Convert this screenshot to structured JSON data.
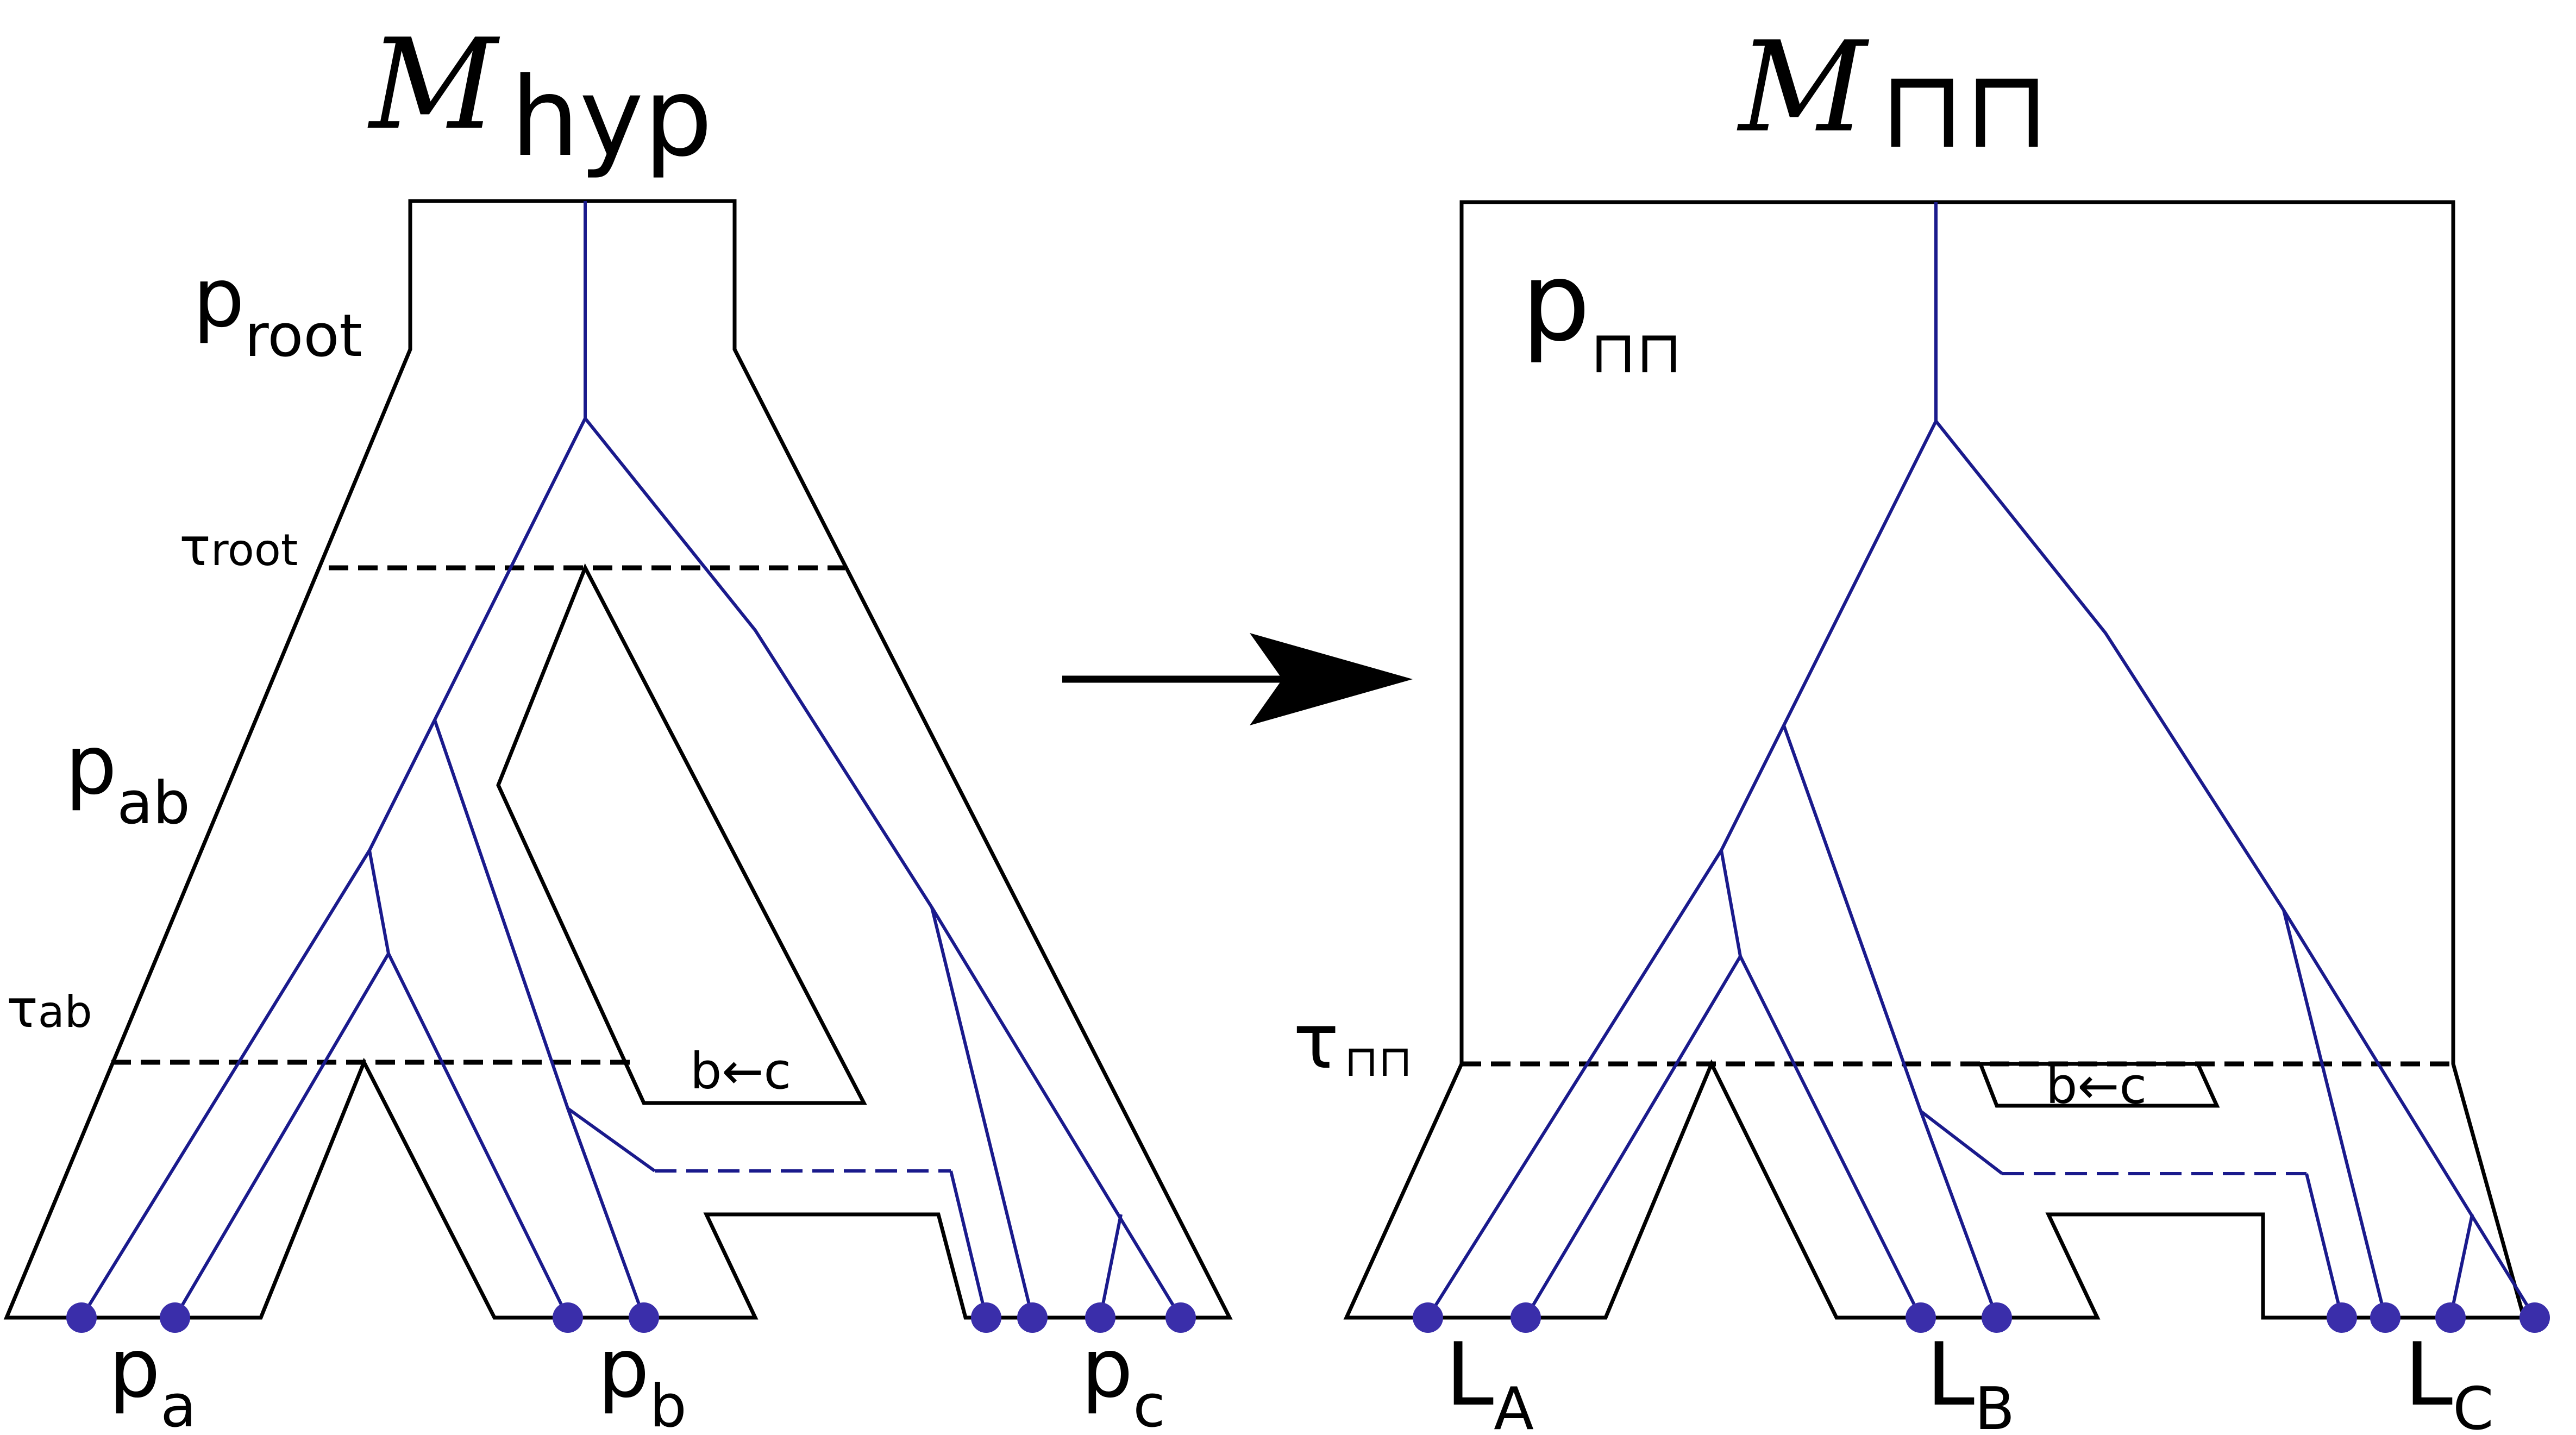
{
  "left_model": {
    "title_script": "M",
    "title_sub": "hyp",
    "pop_labels": {
      "root": {
        "base": "p",
        "sub": "root"
      },
      "ab": {
        "base": "p",
        "sub": "ab"
      },
      "a": {
        "base": "p",
        "sub": "a"
      },
      "b": {
        "base": "p",
        "sub": "b"
      },
      "c": {
        "base": "p",
        "sub": "c"
      }
    },
    "times": {
      "root": {
        "base": "τ",
        "sub": "root"
      },
      "ab": {
        "base": "τ",
        "sub": "ab"
      }
    },
    "migration": "b←c"
  },
  "right_model": {
    "title_script": "M",
    "title_sub": "⊓⊓",
    "pop_label": {
      "base": "p",
      "sub": "⊓⊓"
    },
    "time": {
      "base": "τ",
      "sub": "⊓⊓"
    },
    "migration": "b←c",
    "lineages": {
      "A": {
        "base": "L",
        "sub": "A"
      },
      "B": {
        "base": "L",
        "sub": "B"
      },
      "C": {
        "base": "L",
        "sub": "C"
      }
    }
  },
  "colors": {
    "outline": "#000000",
    "gene_tree": "#1a1a8c",
    "sample": "#3a2eaa"
  },
  "arrow": "right-arrow"
}
